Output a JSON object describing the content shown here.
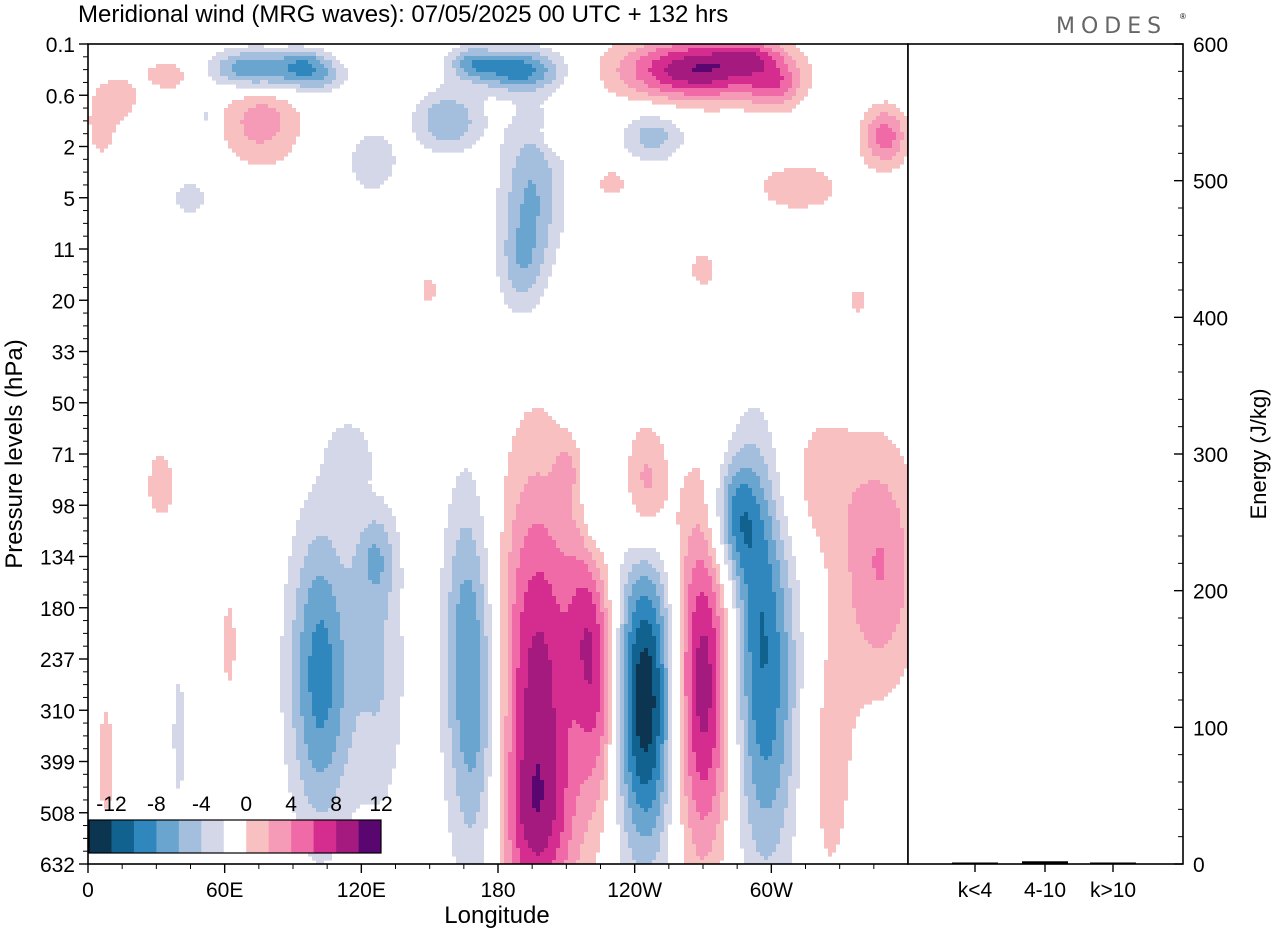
{
  "title": "Meridional wind (MRG waves):  07/05/2025  00 UTC  + 132 hrs",
  "logo_text": "MODES",
  "chart_data": [
    {
      "type": "heatmap",
      "title": "Meridional wind (MRG waves):  07/05/2025  00 UTC  + 132 hrs",
      "xlabel": "Longitude",
      "ylabel": "Pressure levels (hPa)",
      "x_ticks": [
        {
          "label": "0",
          "deg": 0
        },
        {
          "label": "60E",
          "deg": 60
        },
        {
          "label": "120E",
          "deg": 120
        },
        {
          "label": "180",
          "deg": 180
        },
        {
          "label": "120W",
          "deg": 240
        },
        {
          "label": "60W",
          "deg": 300
        }
      ],
      "xlim": [
        0,
        360
      ],
      "y_ticks": [
        "0.1",
        "0.6",
        "2",
        "5",
        "11",
        "20",
        "33",
        "50",
        "71",
        "98",
        "134",
        "180",
        "237",
        "310",
        "399",
        "508",
        "632"
      ],
      "colorbar": {
        "tick_labels": [
          "-12",
          "-8",
          "-4",
          "0",
          "4",
          "8",
          "12"
        ],
        "levels": [
          -14,
          -12,
          -10,
          -8,
          -6,
          -4,
          -2,
          2,
          4,
          6,
          8,
          10,
          12,
          14
        ],
        "colors": [
          "#0b3550",
          "#11628f",
          "#2f87bd",
          "#6aa5cf",
          "#a4bfdd",
          "#d4d7e8",
          "#ffffff",
          "#f8c0c0",
          "#f59bb8",
          "#ef6aa6",
          "#d42c8f",
          "#a51a7f",
          "#5a0670"
        ]
      },
      "blobs": [
        {
          "lon": 102,
          "lev": 12.3,
          "w": 14,
          "h": 3.0,
          "v": -9
        },
        {
          "lon": 128,
          "lev": 12.2,
          "w": 12,
          "h": 3.0,
          "v": -4
        },
        {
          "lon": 126,
          "lev": 10.0,
          "w": 9,
          "h": 0.9,
          "v": -4
        },
        {
          "lon": 197,
          "lev": 12.7,
          "w": 20,
          "h": 4.3,
          "v": 11
        },
        {
          "lon": 196,
          "lev": 15.3,
          "w": 17,
          "h": 1.6,
          "v": 4
        },
        {
          "lon": 172,
          "lev": 13.2,
          "w": 13,
          "h": 3.6,
          "v": -7
        },
        {
          "lon": 165,
          "lev": 11.3,
          "w": 10,
          "h": 3.0,
          "v": -4
        },
        {
          "lon": 225,
          "lev": 12.6,
          "w": 9,
          "h": 2.4,
          "v": 7
        },
        {
          "lon": 245,
          "lev": 12.8,
          "w": 14,
          "h": 3.0,
          "v": -14
        },
        {
          "lon": 270,
          "lev": 12.5,
          "w": 14,
          "h": 3.4,
          "v": 12
        },
        {
          "lon": 283,
          "lev": 9.2,
          "w": 10,
          "h": 1.2,
          "v": -7
        },
        {
          "lon": 297,
          "lev": 12.7,
          "w": 16,
          "h": 3.6,
          "v": -9
        },
        {
          "lon": 293,
          "lev": 9.8,
          "w": 11,
          "h": 2.6,
          "v": -4
        },
        {
          "lon": 245,
          "lev": 8.7,
          "w": 10,
          "h": 1.3,
          "v": 6
        },
        {
          "lon": 325,
          "lev": 14.0,
          "w": 13,
          "h": 3.2,
          "v": 3
        },
        {
          "lon": 348,
          "lev": 10.2,
          "w": 17,
          "h": 2.4,
          "v": 6
        },
        {
          "lon": 320,
          "lev": 8.5,
          "w": 18,
          "h": 1.5,
          "v": 3
        },
        {
          "lon": 222,
          "lev": 9.2,
          "w": 6,
          "h": 1.0,
          "v": -3
        },
        {
          "lon": 218,
          "lev": 11.2,
          "w": 8,
          "h": 2.0,
          "v": 4
        },
        {
          "lon": 32,
          "lev": 8.6,
          "w": 8,
          "h": 0.9,
          "v": 3
        },
        {
          "lon": 62,
          "lev": 11.7,
          "w": 4,
          "h": 1.2,
          "v": 2.8
        },
        {
          "lon": 8,
          "lev": 14.0,
          "w": 5,
          "h": 1.6,
          "v": 2.8
        },
        {
          "lon": 40,
          "lev": 13.5,
          "w": 4,
          "h": 1.8,
          "v": -2.8
        },
        {
          "lon": 115,
          "lev": 8.0,
          "w": 10,
          "h": 0.7,
          "v": -3
        },
        {
          "lon": 210,
          "lev": 8.3,
          "w": 5,
          "h": 0.5,
          "v": 3
        },
        {
          "lon": 73,
          "lev": 0.5,
          "w": 20,
          "h": 0.4,
          "v": -9
        },
        {
          "lon": 99,
          "lev": 0.6,
          "w": 14,
          "h": 0.35,
          "v": -6
        },
        {
          "lon": 188,
          "lev": 0.5,
          "w": 20,
          "h": 0.4,
          "v": -9
        },
        {
          "lon": 168,
          "lev": 0.35,
          "w": 10,
          "h": 0.3,
          "v": -5
        },
        {
          "lon": 268,
          "lev": 0.5,
          "w": 34,
          "h": 0.6,
          "v": 12
        },
        {
          "lon": 302,
          "lev": 0.8,
          "w": 12,
          "h": 0.5,
          "v": 5
        },
        {
          "lon": 290,
          "lev": 0.2,
          "w": 14,
          "h": 0.3,
          "v": 4
        },
        {
          "lon": 36,
          "lev": 0.6,
          "w": 16,
          "h": 0.4,
          "v": 3
        },
        {
          "lon": 76,
          "lev": 1.5,
          "w": 18,
          "h": 0.9,
          "v": 5
        },
        {
          "lon": 158,
          "lev": 1.5,
          "w": 15,
          "h": 0.6,
          "v": -6
        },
        {
          "lon": 195,
          "lev": 2.9,
          "w": 14,
          "h": 1.6,
          "v": -6
        },
        {
          "lon": 190,
          "lev": 4.4,
          "w": 10,
          "h": 1.0,
          "v": -4
        },
        {
          "lon": 248,
          "lev": 1.8,
          "w": 14,
          "h": 0.5,
          "v": -5
        },
        {
          "lon": 125,
          "lev": 2.3,
          "w": 11,
          "h": 0.6,
          "v": -4
        },
        {
          "lon": 350,
          "lev": 1.8,
          "w": 10,
          "h": 0.6,
          "v": 7
        },
        {
          "lon": 312,
          "lev": 2.8,
          "w": 24,
          "h": 0.6,
          "v": 3
        },
        {
          "lon": 6,
          "lev": 1.5,
          "w": 8,
          "h": 0.9,
          "v": 3
        },
        {
          "lon": 45,
          "lev": 3.0,
          "w": 10,
          "h": 0.4,
          "v": -3
        },
        {
          "lon": 15,
          "lev": 1.1,
          "w": 7,
          "h": 0.4,
          "v": 3
        },
        {
          "lon": 52,
          "lev": 1.4,
          "w": 4,
          "h": 0.3,
          "v": -3
        },
        {
          "lon": 230,
          "lev": 2.7,
          "w": 8,
          "h": 0.3,
          "v": 3
        },
        {
          "lon": 205,
          "lev": 1.8,
          "w": 6,
          "h": 0.3,
          "v": 3
        },
        {
          "lon": 270,
          "lev": 4.4,
          "w": 7,
          "h": 0.4,
          "v": 3
        },
        {
          "lon": 150,
          "lev": 4.8,
          "w": 5,
          "h": 0.3,
          "v": 3
        },
        {
          "lon": 338,
          "lev": 5.0,
          "w": 5,
          "h": 0.3,
          "v": 3
        },
        {
          "lon": 95,
          "lev": 0.3,
          "w": 10,
          "h": 0.25,
          "v": -3
        }
      ]
    },
    {
      "type": "bar",
      "ylabel": "Energy (J/kg)",
      "ylim": [
        0,
        600
      ],
      "y_ticks": [
        0,
        100,
        200,
        300,
        400,
        500,
        600
      ],
      "categories": [
        "k<4",
        "4-10",
        "k>10"
      ],
      "values": [
        0.5,
        2,
        0.3
      ]
    }
  ]
}
